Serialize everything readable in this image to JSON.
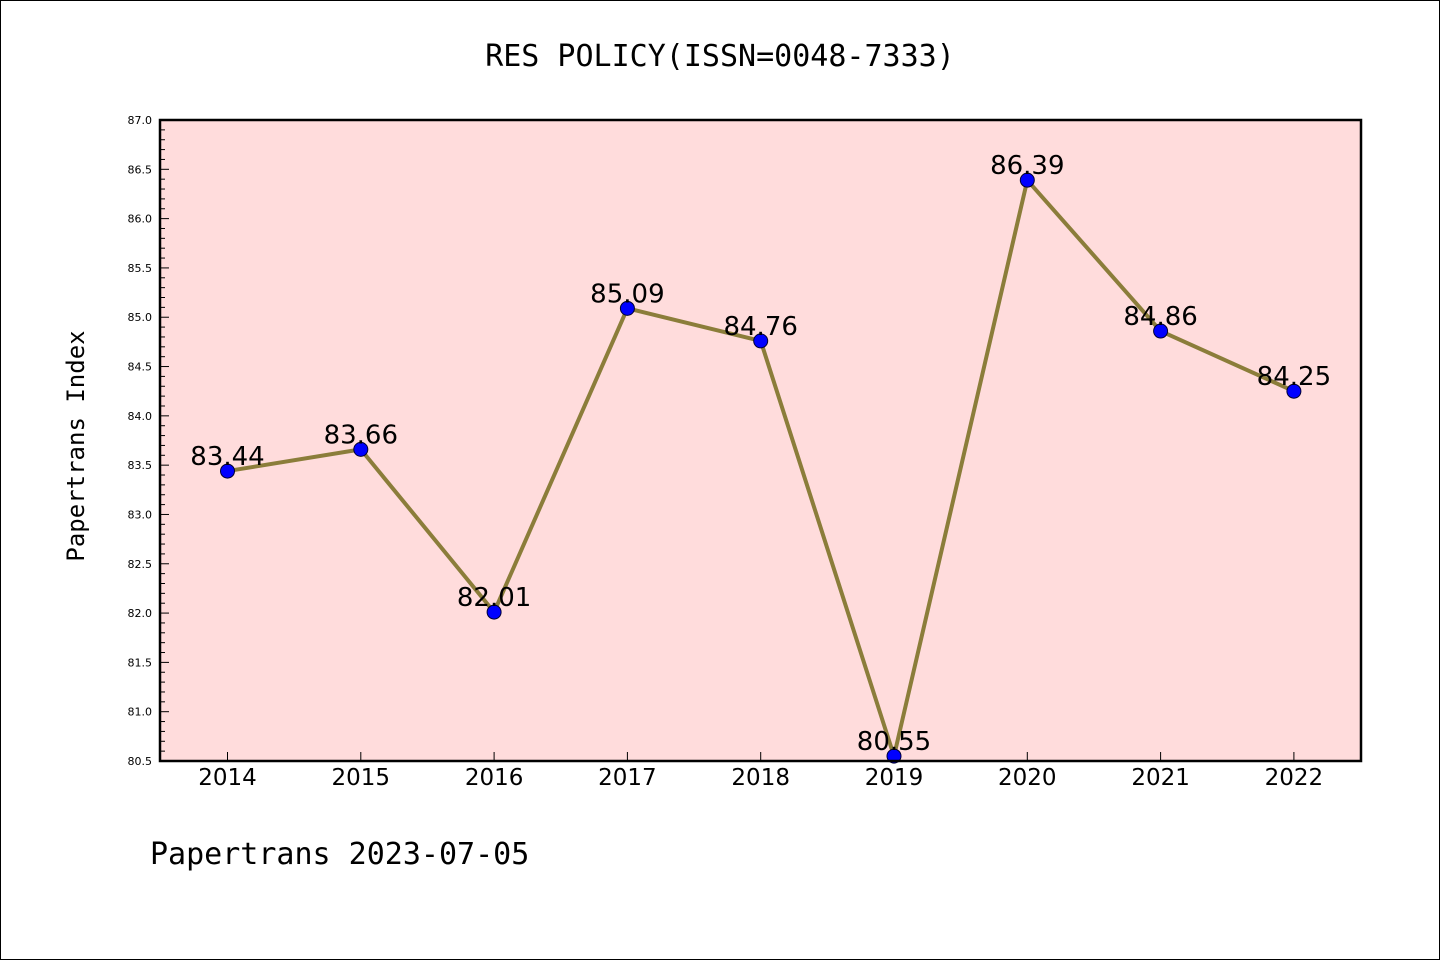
{
  "chart_data": {
    "type": "line",
    "title": "RES POLICY(ISSN=0048-7333)",
    "xlabel": "",
    "ylabel": "Papertrans Index",
    "footer": "Papertrans 2023-07-05",
    "categories": [
      "2014",
      "2015",
      "2016",
      "2017",
      "2018",
      "2019",
      "2020",
      "2021",
      "2022"
    ],
    "values": [
      83.44,
      83.66,
      82.01,
      85.09,
      84.76,
      80.55,
      86.39,
      84.86,
      84.25
    ],
    "data_labels": [
      "83.44",
      "83.66",
      "82.01",
      "85.09",
      "84.76",
      "80.55",
      "86.39",
      "84.86",
      "84.25"
    ],
    "ylim": [
      80.5,
      87.0
    ],
    "yticks": [
      "80.5",
      "81.0",
      "81.5",
      "82.0",
      "82.5",
      "83.0",
      "83.5",
      "84.0",
      "84.5",
      "85.0",
      "85.5",
      "86.0",
      "86.5",
      "87.0"
    ],
    "grid": false,
    "legend": "none",
    "colors": {
      "plot_background": "#ffdcdc",
      "line": "#8b7d3a",
      "marker": "#0000ff"
    }
  }
}
